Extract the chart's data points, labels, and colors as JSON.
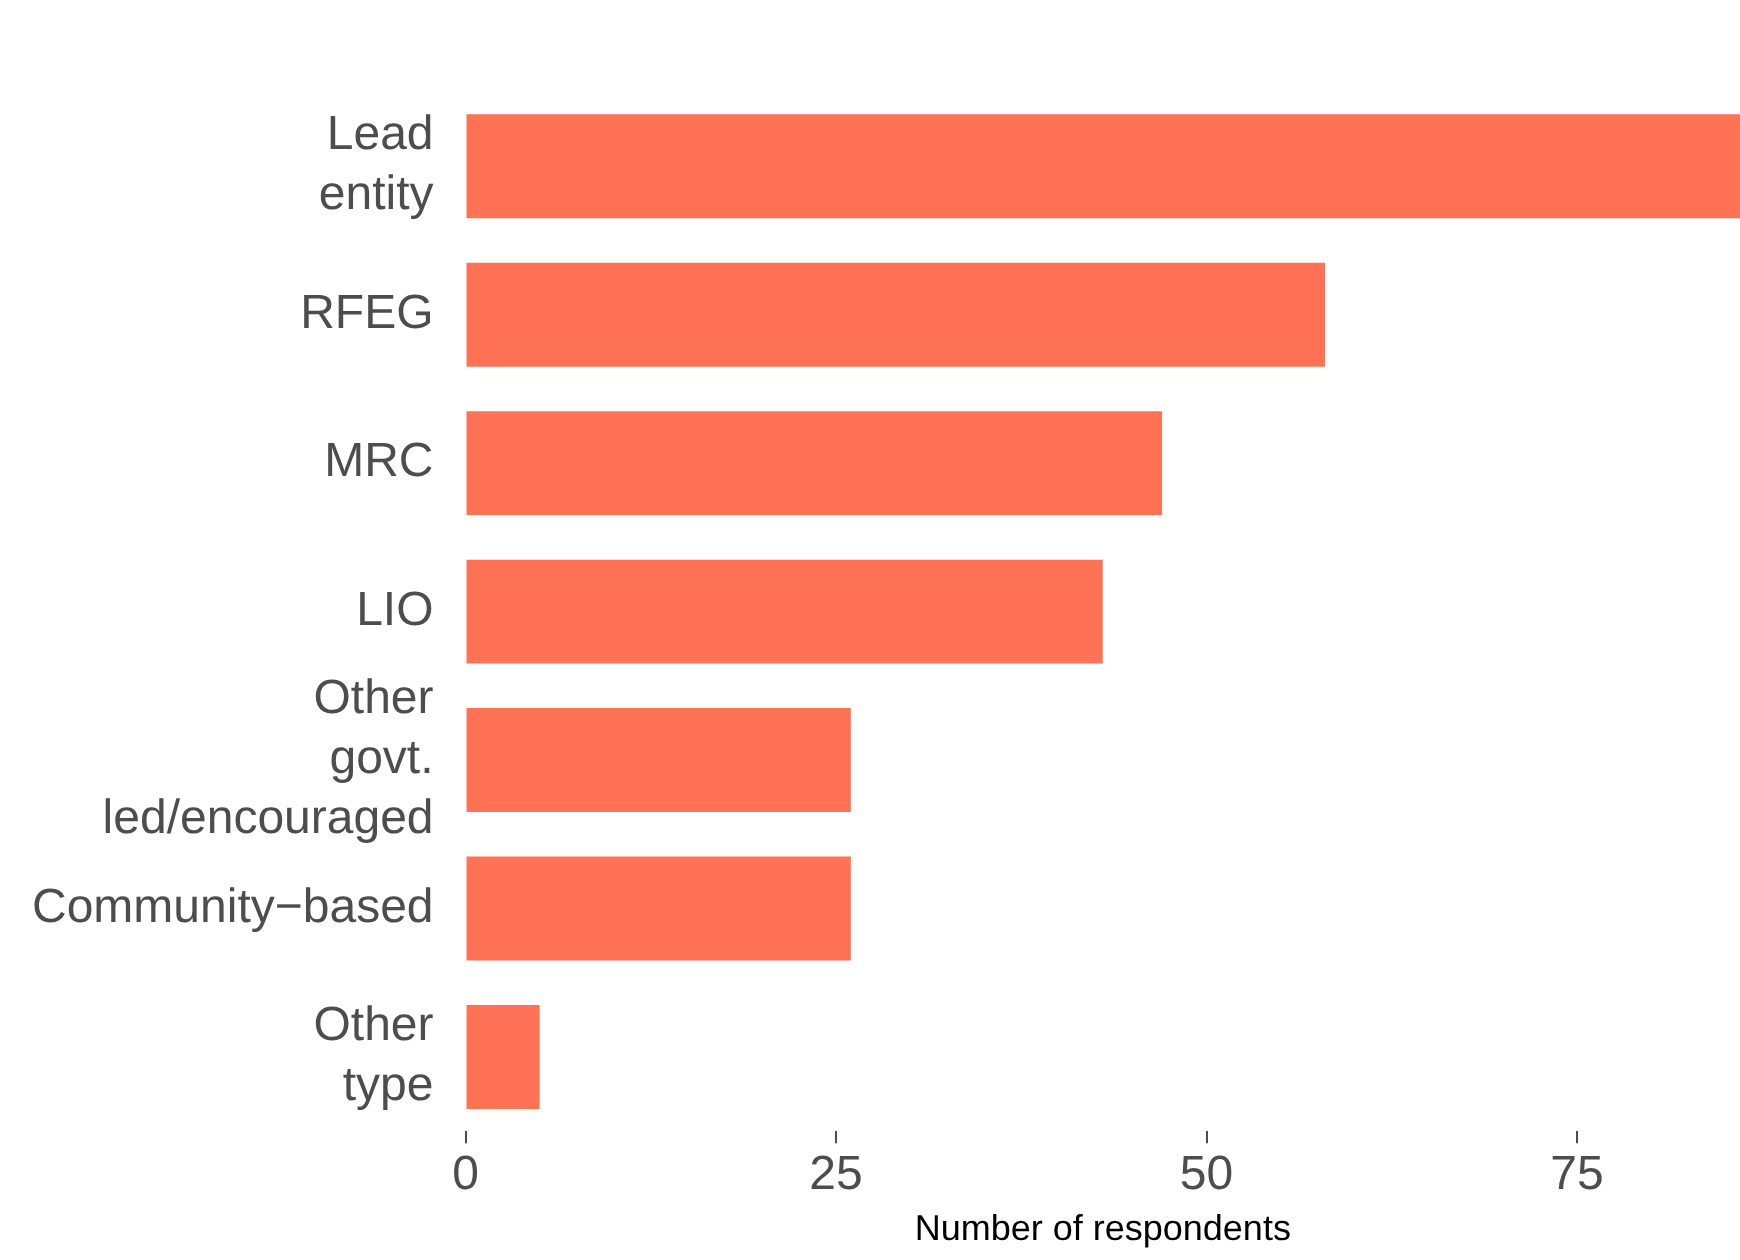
{
  "chart_data": {
    "type": "bar",
    "orientation": "horizontal",
    "xlabel": "Number of respondents",
    "categories": [
      "Lead entity",
      "RFEG",
      "MRC",
      "LIO",
      "Other govt. led/encouraged",
      "Community−based",
      "Other type"
    ],
    "values": [
      86,
      58,
      47,
      43,
      26,
      26,
      5
    ],
    "color": "#ff7256",
    "xlim": [
      0,
      86
    ],
    "xticks": [
      0,
      25,
      50,
      75
    ],
    "grid": false,
    "legend": false
  }
}
